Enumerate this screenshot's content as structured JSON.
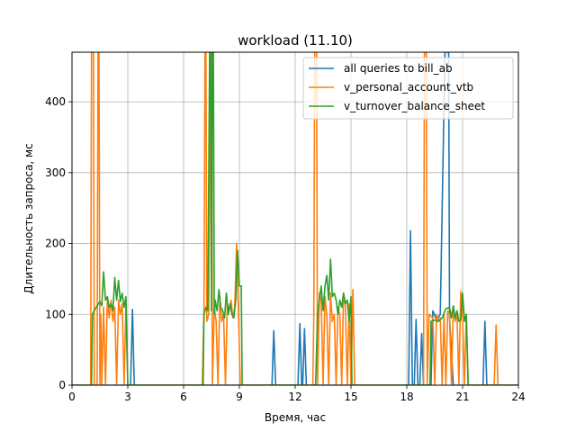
{
  "chart_data": {
    "type": "line",
    "title": "workload (11.10)",
    "xlabel": "Время, час",
    "ylabel": "Длительность запроса, мс",
    "xlim": [
      0,
      24
    ],
    "ylim": [
      0,
      470
    ],
    "xticks": [
      0,
      3,
      6,
      9,
      12,
      15,
      18,
      21,
      24
    ],
    "yticks": [
      0,
      100,
      200,
      300,
      400
    ],
    "grid": true,
    "legend_position": "top-right",
    "series": [
      {
        "name": "all queries to bill_ab",
        "color": "#1f77b4",
        "points": [
          [
            0,
            0
          ],
          [
            3.15,
            0
          ],
          [
            3.25,
            107
          ],
          [
            3.35,
            0
          ],
          [
            10.75,
            0
          ],
          [
            10.85,
            77
          ],
          [
            10.95,
            0
          ],
          [
            12.15,
            0
          ],
          [
            12.25,
            87
          ],
          [
            12.35,
            0
          ],
          [
            12.4,
            0
          ],
          [
            12.5,
            80
          ],
          [
            12.6,
            0
          ],
          [
            18.1,
            0
          ],
          [
            18.2,
            218
          ],
          [
            18.3,
            0
          ],
          [
            18.4,
            0
          ],
          [
            18.5,
            93
          ],
          [
            18.6,
            0
          ],
          [
            18.7,
            0
          ],
          [
            18.8,
            73
          ],
          [
            18.9,
            0
          ],
          [
            19.3,
            0
          ],
          [
            19.4,
            105
          ],
          [
            19.6,
            92
          ],
          [
            19.8,
            100
          ],
          [
            20.05,
            470
          ],
          [
            20.15,
            470
          ],
          [
            20.25,
            470
          ],
          [
            20.3,
            95
          ],
          [
            20.5,
            0
          ],
          [
            22.1,
            0
          ],
          [
            22.2,
            90
          ],
          [
            22.3,
            0
          ],
          [
            24,
            0
          ]
        ]
      },
      {
        "name": "v_personal_account_vtb",
        "color": "#ff7f0e",
        "points": [
          [
            0,
            0
          ],
          [
            1.0,
            0
          ],
          [
            1.05,
            470
          ],
          [
            1.15,
            470
          ],
          [
            1.2,
            0
          ],
          [
            1.35,
            0
          ],
          [
            1.4,
            470
          ],
          [
            1.45,
            470
          ],
          [
            1.5,
            0
          ],
          [
            1.55,
            100
          ],
          [
            1.6,
            0
          ],
          [
            1.7,
            110
          ],
          [
            1.8,
            0
          ],
          [
            1.9,
            123
          ],
          [
            2.0,
            95
          ],
          [
            2.1,
            120
          ],
          [
            2.2,
            90
          ],
          [
            2.3,
            110
          ],
          [
            2.4,
            0
          ],
          [
            2.5,
            120
          ],
          [
            2.6,
            100
          ],
          [
            2.7,
            115
          ],
          [
            2.8,
            0
          ],
          [
            2.9,
            112
          ],
          [
            3.0,
            0
          ],
          [
            3.1,
            0
          ],
          [
            7.0,
            0
          ],
          [
            7.1,
            110
          ],
          [
            7.15,
            470
          ],
          [
            7.2,
            470
          ],
          [
            7.25,
            90
          ],
          [
            7.35,
            100
          ],
          [
            7.45,
            470
          ],
          [
            7.5,
            470
          ],
          [
            7.55,
            0
          ],
          [
            7.65,
            110
          ],
          [
            7.75,
            90
          ],
          [
            7.85,
            0
          ],
          [
            7.95,
            125
          ],
          [
            8.05,
            90
          ],
          [
            8.15,
            100
          ],
          [
            8.25,
            0
          ],
          [
            8.35,
            115
          ],
          [
            8.45,
            105
          ],
          [
            8.55,
            120
          ],
          [
            8.65,
            95
          ],
          [
            8.75,
            110
          ],
          [
            8.85,
            200
          ],
          [
            8.95,
            100
          ],
          [
            9.05,
            0
          ],
          [
            9.2,
            0
          ],
          [
            12.95,
            0
          ],
          [
            13.0,
            100
          ],
          [
            13.05,
            470
          ],
          [
            13.15,
            470
          ],
          [
            13.2,
            0
          ],
          [
            13.3,
            130
          ],
          [
            13.4,
            120
          ],
          [
            13.5,
            0
          ],
          [
            13.6,
            125
          ],
          [
            13.7,
            100
          ],
          [
            13.8,
            0
          ],
          [
            13.9,
            130
          ],
          [
            14.0,
            90
          ],
          [
            14.1,
            100
          ],
          [
            14.2,
            0
          ],
          [
            14.3,
            110
          ],
          [
            14.4,
            100
          ],
          [
            14.5,
            0
          ],
          [
            14.6,
            130
          ],
          [
            14.7,
            110
          ],
          [
            14.8,
            0
          ],
          [
            14.9,
            115
          ],
          [
            15.0,
            0
          ],
          [
            15.1,
            135
          ],
          [
            15.2,
            0
          ],
          [
            18.9,
            0
          ],
          [
            18.95,
            470
          ],
          [
            19.05,
            470
          ],
          [
            19.1,
            0
          ],
          [
            19.2,
            100
          ],
          [
            19.4,
            95
          ],
          [
            19.5,
            0
          ],
          [
            19.6,
            100
          ],
          [
            19.7,
            90
          ],
          [
            19.8,
            95
          ],
          [
            19.9,
            0
          ],
          [
            20.0,
            100
          ],
          [
            20.1,
            0
          ],
          [
            20.2,
            105
          ],
          [
            20.3,
            100
          ],
          [
            20.4,
            0
          ],
          [
            20.5,
            110
          ],
          [
            20.6,
            90
          ],
          [
            20.7,
            100
          ],
          [
            20.8,
            0
          ],
          [
            20.9,
            132
          ],
          [
            21.0,
            95
          ],
          [
            21.1,
            0
          ],
          [
            21.2,
            100
          ],
          [
            21.3,
            0
          ],
          [
            22.7,
            0
          ],
          [
            22.8,
            85
          ],
          [
            22.9,
            0
          ],
          [
            24,
            0
          ]
        ]
      },
      {
        "name": "v_turnover_balance_sheet",
        "color": "#2ca02c",
        "points": [
          [
            0,
            0
          ],
          [
            1.05,
            0
          ],
          [
            1.1,
            100
          ],
          [
            1.3,
            110
          ],
          [
            1.5,
            118
          ],
          [
            1.6,
            112
          ],
          [
            1.7,
            160
          ],
          [
            1.8,
            120
          ],
          [
            1.9,
            125
          ],
          [
            2.0,
            110
          ],
          [
            2.1,
            115
          ],
          [
            2.2,
            105
          ],
          [
            2.3,
            152
          ],
          [
            2.4,
            120
          ],
          [
            2.5,
            148
          ],
          [
            2.6,
            118
          ],
          [
            2.7,
            130
          ],
          [
            2.8,
            110
          ],
          [
            2.9,
            125
          ],
          [
            3.0,
            0
          ],
          [
            7.05,
            0
          ],
          [
            7.1,
            100
          ],
          [
            7.2,
            110
          ],
          [
            7.3,
            105
          ],
          [
            7.4,
            470
          ],
          [
            7.45,
            470
          ],
          [
            7.5,
            105
          ],
          [
            7.55,
            470
          ],
          [
            7.6,
            470
          ],
          [
            7.65,
            100
          ],
          [
            7.7,
            120
          ],
          [
            7.8,
            105
          ],
          [
            7.9,
            135
          ],
          [
            8.0,
            110
          ],
          [
            8.1,
            105
          ],
          [
            8.2,
            95
          ],
          [
            8.3,
            130
          ],
          [
            8.4,
            100
          ],
          [
            8.5,
            115
          ],
          [
            8.6,
            100
          ],
          [
            8.7,
            95
          ],
          [
            8.8,
            120
          ],
          [
            8.9,
            190
          ],
          [
            9.0,
            140
          ],
          [
            9.1,
            140
          ],
          [
            9.15,
            0
          ],
          [
            13.1,
            0
          ],
          [
            13.2,
            100
          ],
          [
            13.3,
            120
          ],
          [
            13.4,
            140
          ],
          [
            13.5,
            105
          ],
          [
            13.6,
            140
          ],
          [
            13.7,
            155
          ],
          [
            13.8,
            120
          ],
          [
            13.9,
            178
          ],
          [
            14.0,
            125
          ],
          [
            14.1,
            130
          ],
          [
            14.2,
            120
          ],
          [
            14.3,
            100
          ],
          [
            14.4,
            120
          ],
          [
            14.5,
            110
          ],
          [
            14.6,
            130
          ],
          [
            14.7,
            115
          ],
          [
            14.8,
            120
          ],
          [
            14.9,
            90
          ],
          [
            15.0,
            125
          ],
          [
            15.05,
            0
          ],
          [
            19.25,
            0
          ],
          [
            19.3,
            90
          ],
          [
            19.5,
            92
          ],
          [
            19.7,
            90
          ],
          [
            19.9,
            95
          ],
          [
            20.1,
            108
          ],
          [
            20.3,
            110
          ],
          [
            20.4,
            95
          ],
          [
            20.5,
            112
          ],
          [
            20.6,
            95
          ],
          [
            20.7,
            105
          ],
          [
            20.8,
            90
          ],
          [
            20.9,
            92
          ],
          [
            21.0,
            130
          ],
          [
            21.1,
            90
          ],
          [
            21.2,
            100
          ],
          [
            21.3,
            0
          ],
          [
            24,
            0
          ]
        ]
      }
    ]
  }
}
